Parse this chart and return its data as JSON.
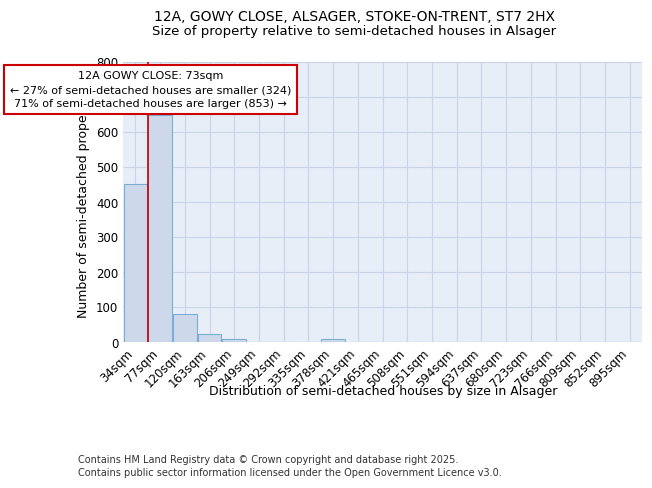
{
  "title_line1": "12A, GOWY CLOSE, ALSAGER, STOKE-ON-TRENT, ST7 2HX",
  "title_line2": "Size of property relative to semi-detached houses in Alsager",
  "xlabel": "Distribution of semi-detached houses by size in Alsager",
  "ylabel": "Number of semi-detached properties",
  "categories": [
    "34sqm",
    "77sqm",
    "120sqm",
    "163sqm",
    "206sqm",
    "249sqm",
    "292sqm",
    "335sqm",
    "378sqm",
    "421sqm",
    "465sqm",
    "508sqm",
    "551sqm",
    "594sqm",
    "637sqm",
    "680sqm",
    "723sqm",
    "766sqm",
    "809sqm",
    "852sqm",
    "895sqm"
  ],
  "values": [
    450,
    648,
    80,
    22,
    8,
    0,
    0,
    0,
    8,
    0,
    0,
    0,
    0,
    0,
    0,
    0,
    0,
    0,
    0,
    0,
    0
  ],
  "bar_color": "#cdd9ea",
  "bar_edge_color": "#7aafd4",
  "grid_color": "#c8d4e8",
  "background_color": "#e8eef8",
  "annotation_texts": [
    "12A GOWY CLOSE: 73sqm",
    "← 27% of semi-detached houses are smaller (324)",
    "71% of semi-detached houses are larger (853) →"
  ],
  "annotation_box_facecolor": "#ffffff",
  "annotation_box_edgecolor": "#cc0000",
  "red_line_x": 0.55,
  "ylim": [
    0,
    800
  ],
  "yticks": [
    0,
    100,
    200,
    300,
    400,
    500,
    600,
    700,
    800
  ],
  "title_fontsize": 10,
  "subtitle_fontsize": 9.5,
  "axis_label_fontsize": 9,
  "tick_fontsize": 8.5,
  "annotation_fontsize": 8,
  "footer_fontsize": 7,
  "footer_line1": "Contains HM Land Registry data © Crown copyright and database right 2025.",
  "footer_line2": "Contains public sector information licensed under the Open Government Licence v3.0."
}
